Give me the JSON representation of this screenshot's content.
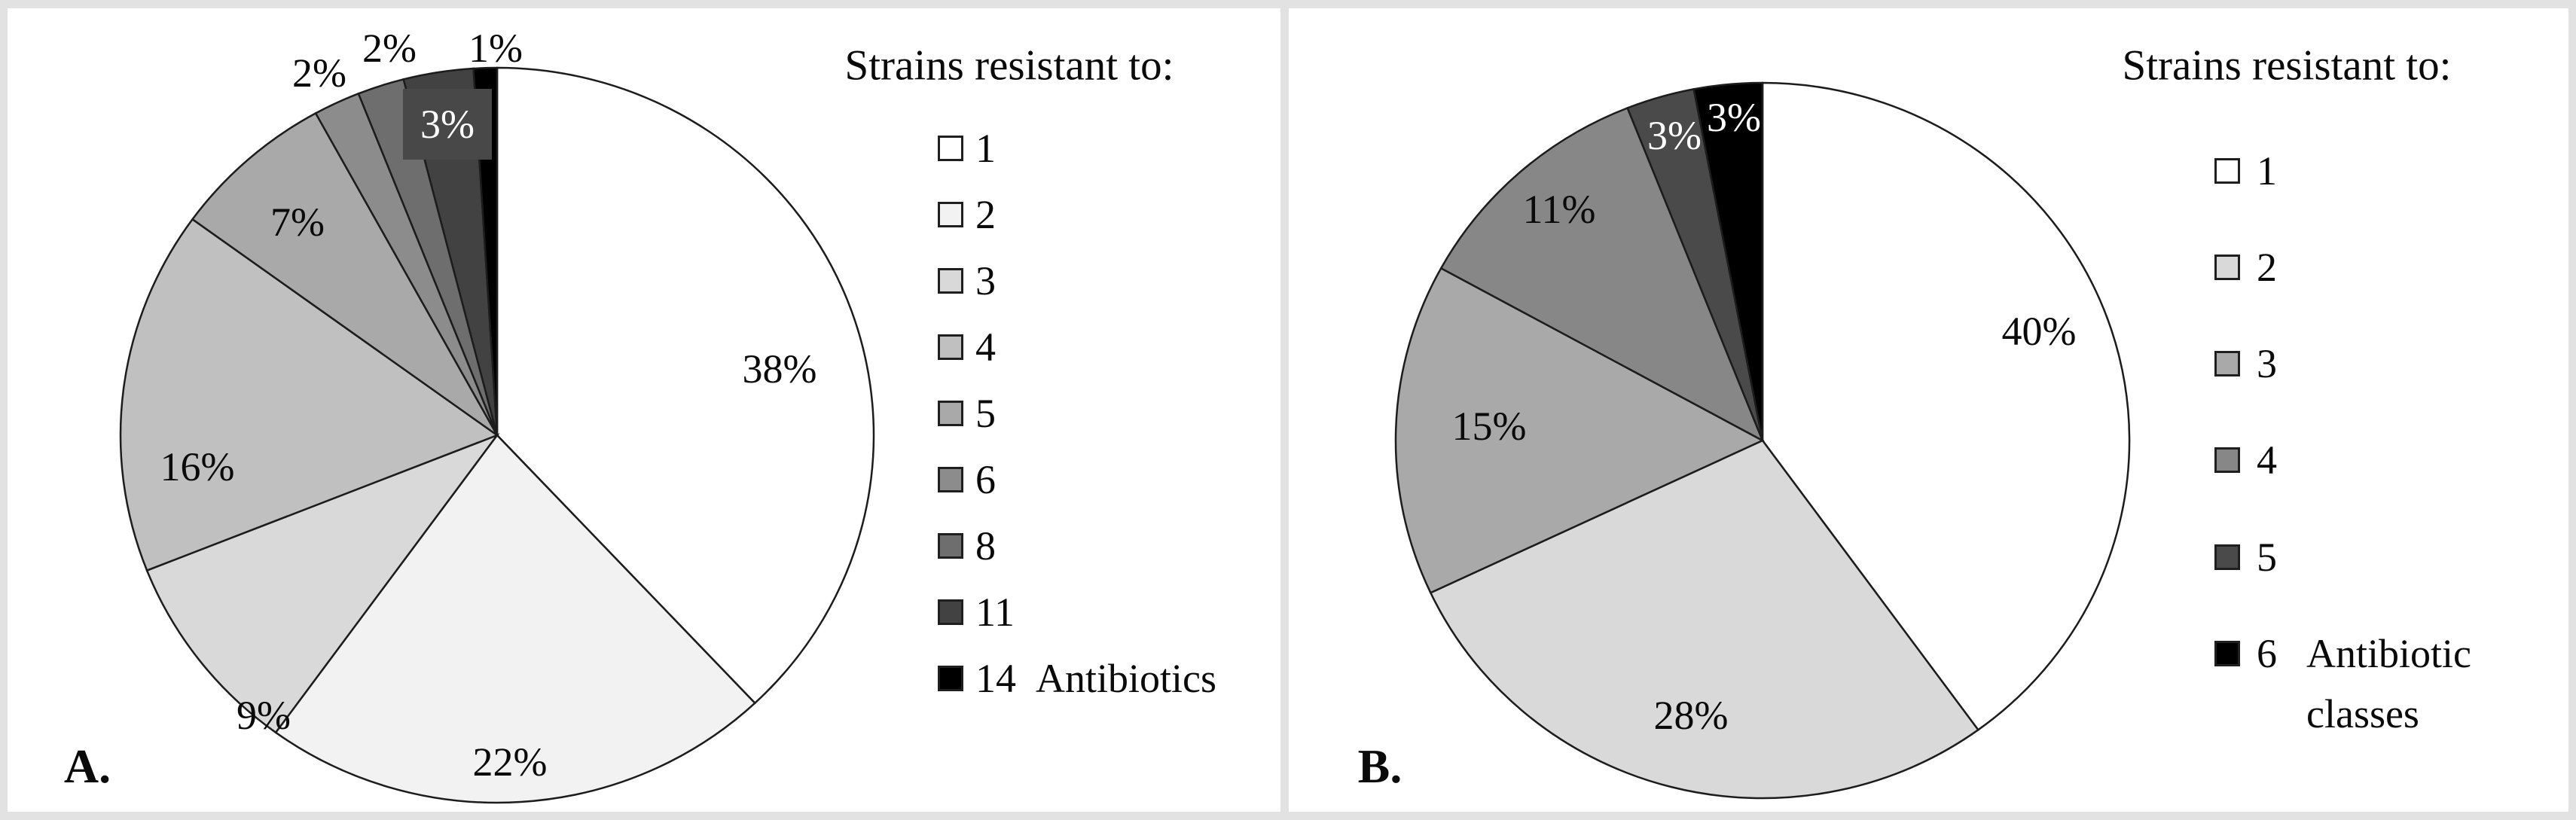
{
  "frame_color": "#e2e2e2",
  "text_color": "#0a0a0a",
  "chart_data": [
    {
      "type": "pie",
      "panel_label": "A.",
      "title": "Strains resistant to:",
      "legend_position": "right",
      "legend_suffix_lines": [
        "Antibiotics"
      ],
      "direction": "clockwise",
      "start_angle_deg": 0,
      "slices": [
        {
          "legend_label": "1",
          "value": 38,
          "data_label": "38%",
          "color": "#ffffff",
          "label_color": "#0a0a0a",
          "label_placement": "inside"
        },
        {
          "legend_label": "2",
          "value": 22,
          "data_label": "22%",
          "color": "#f2f2f2",
          "label_color": "#0a0a0a",
          "label_placement": "inside"
        },
        {
          "legend_label": "3",
          "value": 9,
          "data_label": "9%",
          "color": "#d9d9d9",
          "label_color": "#0a0a0a",
          "label_placement": "inside"
        },
        {
          "legend_label": "4",
          "value": 16,
          "data_label": "16%",
          "color": "#c0c0c0",
          "label_color": "#0a0a0a",
          "label_placement": "inside"
        },
        {
          "legend_label": "5",
          "value": 7,
          "data_label": "7%",
          "color": "#a9a9a9",
          "label_color": "#0a0a0a",
          "label_placement": "inside"
        },
        {
          "legend_label": "6",
          "value": 2,
          "data_label": "2%",
          "color": "#8c8c8c",
          "label_color": "#0a0a0a",
          "label_placement": "outside"
        },
        {
          "legend_label": "8",
          "value": 2,
          "data_label": "2%",
          "color": "#6e6e6e",
          "label_color": "#0a0a0a",
          "label_placement": "outside"
        },
        {
          "legend_label": "11",
          "value": 3,
          "data_label": "3%",
          "color": "#424242",
          "label_color": "#ffffff",
          "label_box_color": "#484848",
          "label_placement": "inside"
        },
        {
          "legend_label": "14",
          "value": 1,
          "data_label": "1%",
          "color": "#000000",
          "label_color": "#0a0a0a",
          "label_placement": "outside"
        }
      ]
    },
    {
      "type": "pie",
      "panel_label": "B.",
      "title": "Strains resistant to:",
      "legend_position": "right",
      "legend_suffix_lines": [
        "Antibiotic",
        "classes"
      ],
      "direction": "clockwise",
      "start_angle_deg": 0,
      "slices": [
        {
          "legend_label": "1",
          "value": 40,
          "data_label": "40%",
          "color": "#ffffff",
          "label_color": "#0a0a0a",
          "label_placement": "inside"
        },
        {
          "legend_label": "2",
          "value": 28,
          "data_label": "28%",
          "color": "#d9d9d9",
          "label_color": "#0a0a0a",
          "label_placement": "inside"
        },
        {
          "legend_label": "3",
          "value": 15,
          "data_label": "15%",
          "color": "#a9a9a9",
          "label_color": "#0a0a0a",
          "label_placement": "inside"
        },
        {
          "legend_label": "4",
          "value": 11,
          "data_label": "11%",
          "color": "#878787",
          "label_color": "#0a0a0a",
          "label_placement": "inside"
        },
        {
          "legend_label": "5",
          "value": 3,
          "data_label": "3%",
          "color": "#4a4a4a",
          "label_color": "#ffffff",
          "label_placement": "inside"
        },
        {
          "legend_label": "6",
          "value": 3,
          "data_label": "3%",
          "color": "#000000",
          "label_color": "#ffffff",
          "label_placement": "inside"
        }
      ]
    }
  ]
}
